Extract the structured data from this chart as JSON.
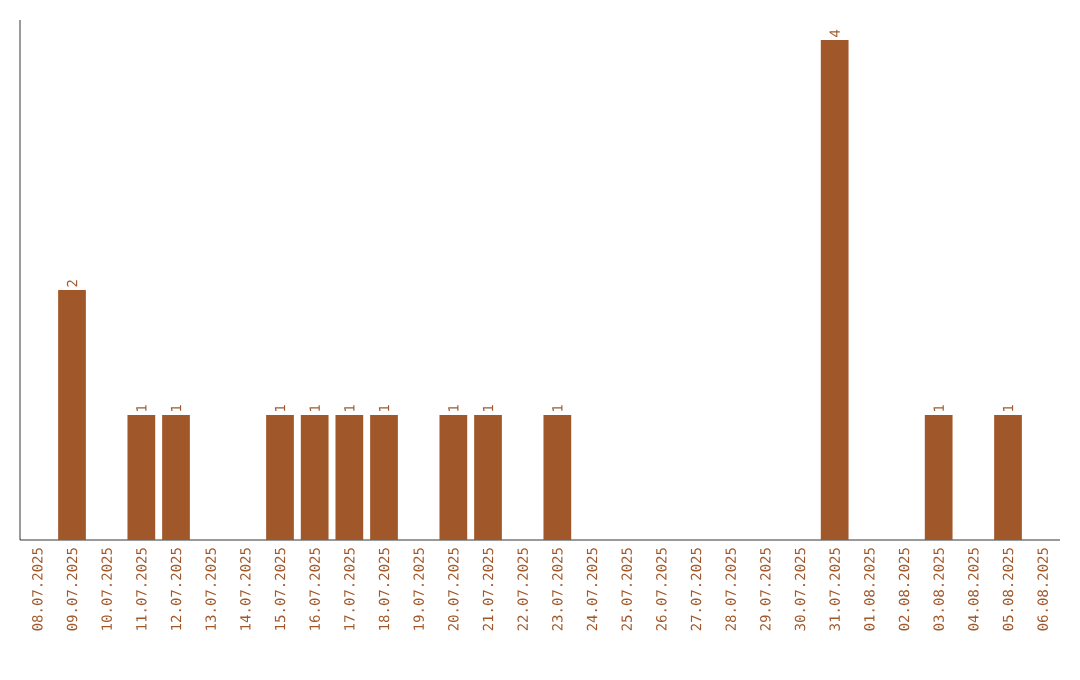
{
  "chart_data": {
    "type": "bar",
    "categories": [
      "08.07.2025",
      "09.07.2025",
      "10.07.2025",
      "11.07.2025",
      "12.07.2025",
      "13.07.2025",
      "14.07.2025",
      "15.07.2025",
      "16.07.2025",
      "17.07.2025",
      "18.07.2025",
      "19.07.2025",
      "20.07.2025",
      "21.07.2025",
      "22.07.2025",
      "23.07.2025",
      "24.07.2025",
      "25.07.2025",
      "26.07.2025",
      "27.07.2025",
      "28.07.2025",
      "29.07.2025",
      "30.07.2025",
      "31.07.2025",
      "01.08.2025",
      "02.08.2025",
      "03.08.2025",
      "04.08.2025",
      "05.08.2025",
      "06.08.2025"
    ],
    "values": [
      0,
      2,
      0,
      1,
      1,
      0,
      0,
      1,
      1,
      1,
      1,
      0,
      1,
      1,
      0,
      1,
      0,
      0,
      0,
      0,
      0,
      0,
      0,
      4,
      0,
      0,
      1,
      0,
      1,
      0
    ],
    "value_labels": [
      null,
      "2",
      null,
      "1",
      "1",
      null,
      null,
      "1",
      "1",
      "1",
      "1",
      null,
      "1",
      "1",
      null,
      "1",
      null,
      null,
      null,
      null,
      null,
      null,
      null,
      "4",
      null,
      null,
      "1",
      null,
      "1",
      null
    ],
    "color": "#a0582a",
    "tick_labels": "x"
  }
}
